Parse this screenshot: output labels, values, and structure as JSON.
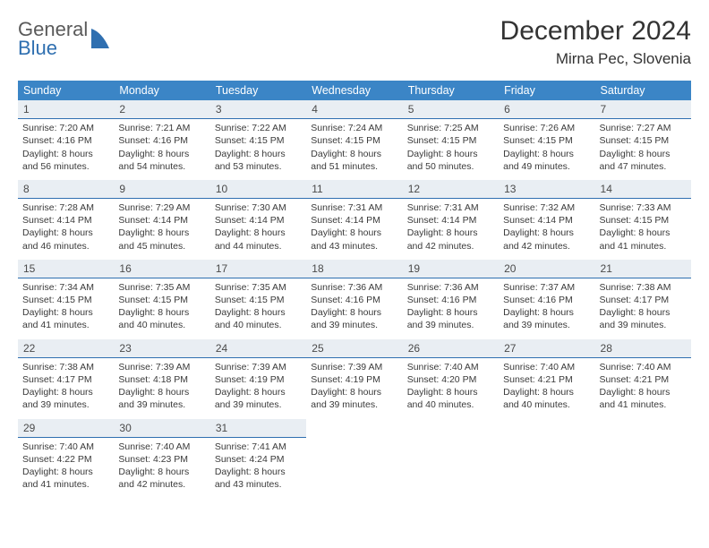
{
  "logo": {
    "general": "General",
    "blue": "Blue"
  },
  "title": {
    "month": "December 2024",
    "location": "Mirna Pec, Slovenia"
  },
  "colors": {
    "header_bg": "#3b85c6",
    "header_fg": "#ffffff",
    "daynum_bg": "#e9eef3",
    "daynum_border": "#2f6fb0",
    "text": "#3a3a3a",
    "title_color": "#333333",
    "logo_gray": "#5a5a5a",
    "logo_blue": "#2f6fb0"
  },
  "day_headers": [
    "Sunday",
    "Monday",
    "Tuesday",
    "Wednesday",
    "Thursday",
    "Friday",
    "Saturday"
  ],
  "weeks": [
    [
      {
        "n": "1",
        "sr": "Sunrise: 7:20 AM",
        "ss": "Sunset: 4:16 PM",
        "d1": "Daylight: 8 hours",
        "d2": "and 56 minutes."
      },
      {
        "n": "2",
        "sr": "Sunrise: 7:21 AM",
        "ss": "Sunset: 4:16 PM",
        "d1": "Daylight: 8 hours",
        "d2": "and 54 minutes."
      },
      {
        "n": "3",
        "sr": "Sunrise: 7:22 AM",
        "ss": "Sunset: 4:15 PM",
        "d1": "Daylight: 8 hours",
        "d2": "and 53 minutes."
      },
      {
        "n": "4",
        "sr": "Sunrise: 7:24 AM",
        "ss": "Sunset: 4:15 PM",
        "d1": "Daylight: 8 hours",
        "d2": "and 51 minutes."
      },
      {
        "n": "5",
        "sr": "Sunrise: 7:25 AM",
        "ss": "Sunset: 4:15 PM",
        "d1": "Daylight: 8 hours",
        "d2": "and 50 minutes."
      },
      {
        "n": "6",
        "sr": "Sunrise: 7:26 AM",
        "ss": "Sunset: 4:15 PM",
        "d1": "Daylight: 8 hours",
        "d2": "and 49 minutes."
      },
      {
        "n": "7",
        "sr": "Sunrise: 7:27 AM",
        "ss": "Sunset: 4:15 PM",
        "d1": "Daylight: 8 hours",
        "d2": "and 47 minutes."
      }
    ],
    [
      {
        "n": "8",
        "sr": "Sunrise: 7:28 AM",
        "ss": "Sunset: 4:14 PM",
        "d1": "Daylight: 8 hours",
        "d2": "and 46 minutes."
      },
      {
        "n": "9",
        "sr": "Sunrise: 7:29 AM",
        "ss": "Sunset: 4:14 PM",
        "d1": "Daylight: 8 hours",
        "d2": "and 45 minutes."
      },
      {
        "n": "10",
        "sr": "Sunrise: 7:30 AM",
        "ss": "Sunset: 4:14 PM",
        "d1": "Daylight: 8 hours",
        "d2": "and 44 minutes."
      },
      {
        "n": "11",
        "sr": "Sunrise: 7:31 AM",
        "ss": "Sunset: 4:14 PM",
        "d1": "Daylight: 8 hours",
        "d2": "and 43 minutes."
      },
      {
        "n": "12",
        "sr": "Sunrise: 7:31 AM",
        "ss": "Sunset: 4:14 PM",
        "d1": "Daylight: 8 hours",
        "d2": "and 42 minutes."
      },
      {
        "n": "13",
        "sr": "Sunrise: 7:32 AM",
        "ss": "Sunset: 4:14 PM",
        "d1": "Daylight: 8 hours",
        "d2": "and 42 minutes."
      },
      {
        "n": "14",
        "sr": "Sunrise: 7:33 AM",
        "ss": "Sunset: 4:15 PM",
        "d1": "Daylight: 8 hours",
        "d2": "and 41 minutes."
      }
    ],
    [
      {
        "n": "15",
        "sr": "Sunrise: 7:34 AM",
        "ss": "Sunset: 4:15 PM",
        "d1": "Daylight: 8 hours",
        "d2": "and 41 minutes."
      },
      {
        "n": "16",
        "sr": "Sunrise: 7:35 AM",
        "ss": "Sunset: 4:15 PM",
        "d1": "Daylight: 8 hours",
        "d2": "and 40 minutes."
      },
      {
        "n": "17",
        "sr": "Sunrise: 7:35 AM",
        "ss": "Sunset: 4:15 PM",
        "d1": "Daylight: 8 hours",
        "d2": "and 40 minutes."
      },
      {
        "n": "18",
        "sr": "Sunrise: 7:36 AM",
        "ss": "Sunset: 4:16 PM",
        "d1": "Daylight: 8 hours",
        "d2": "and 39 minutes."
      },
      {
        "n": "19",
        "sr": "Sunrise: 7:36 AM",
        "ss": "Sunset: 4:16 PM",
        "d1": "Daylight: 8 hours",
        "d2": "and 39 minutes."
      },
      {
        "n": "20",
        "sr": "Sunrise: 7:37 AM",
        "ss": "Sunset: 4:16 PM",
        "d1": "Daylight: 8 hours",
        "d2": "and 39 minutes."
      },
      {
        "n": "21",
        "sr": "Sunrise: 7:38 AM",
        "ss": "Sunset: 4:17 PM",
        "d1": "Daylight: 8 hours",
        "d2": "and 39 minutes."
      }
    ],
    [
      {
        "n": "22",
        "sr": "Sunrise: 7:38 AM",
        "ss": "Sunset: 4:17 PM",
        "d1": "Daylight: 8 hours",
        "d2": "and 39 minutes."
      },
      {
        "n": "23",
        "sr": "Sunrise: 7:39 AM",
        "ss": "Sunset: 4:18 PM",
        "d1": "Daylight: 8 hours",
        "d2": "and 39 minutes."
      },
      {
        "n": "24",
        "sr": "Sunrise: 7:39 AM",
        "ss": "Sunset: 4:19 PM",
        "d1": "Daylight: 8 hours",
        "d2": "and 39 minutes."
      },
      {
        "n": "25",
        "sr": "Sunrise: 7:39 AM",
        "ss": "Sunset: 4:19 PM",
        "d1": "Daylight: 8 hours",
        "d2": "and 39 minutes."
      },
      {
        "n": "26",
        "sr": "Sunrise: 7:40 AM",
        "ss": "Sunset: 4:20 PM",
        "d1": "Daylight: 8 hours",
        "d2": "and 40 minutes."
      },
      {
        "n": "27",
        "sr": "Sunrise: 7:40 AM",
        "ss": "Sunset: 4:21 PM",
        "d1": "Daylight: 8 hours",
        "d2": "and 40 minutes."
      },
      {
        "n": "28",
        "sr": "Sunrise: 7:40 AM",
        "ss": "Sunset: 4:21 PM",
        "d1": "Daylight: 8 hours",
        "d2": "and 41 minutes."
      }
    ],
    [
      {
        "n": "29",
        "sr": "Sunrise: 7:40 AM",
        "ss": "Sunset: 4:22 PM",
        "d1": "Daylight: 8 hours",
        "d2": "and 41 minutes."
      },
      {
        "n": "30",
        "sr": "Sunrise: 7:40 AM",
        "ss": "Sunset: 4:23 PM",
        "d1": "Daylight: 8 hours",
        "d2": "and 42 minutes."
      },
      {
        "n": "31",
        "sr": "Sunrise: 7:41 AM",
        "ss": "Sunset: 4:24 PM",
        "d1": "Daylight: 8 hours",
        "d2": "and 43 minutes."
      },
      null,
      null,
      null,
      null
    ]
  ]
}
